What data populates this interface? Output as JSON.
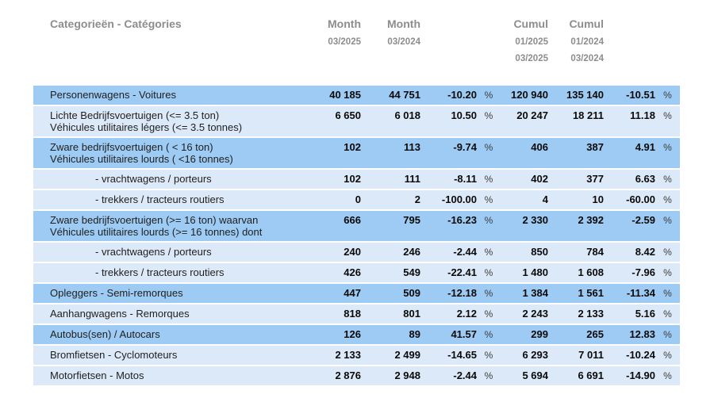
{
  "header": {
    "category_column_label": "Categorieën - Catégories",
    "month_current": {
      "label": "Month",
      "period": "03/2025"
    },
    "month_previous": {
      "label": "Month",
      "period": "03/2024"
    },
    "cumul_current": {
      "label": "Cumul",
      "period_from": "01/2025",
      "period_to": "03/2025"
    },
    "cumul_previous": {
      "label": "Cumul",
      "period_from": "01/2024",
      "period_to": "03/2024"
    }
  },
  "percent_symbol": "%",
  "colors": {
    "row_dark": "#9ecbf3",
    "row_light": "#dce9f8",
    "header_text": "#8d8d8d",
    "label_text": "#1f1f1f",
    "number_text": "#0a0a0a",
    "percent_text": "#3c3c3c"
  },
  "table": {
    "rows": [
      {
        "label_lines": [
          "Personenwagens - Voitures"
        ],
        "indent": false,
        "shade": "dark",
        "month_current": "40 185",
        "month_previous": "44 751",
        "month_pct": "-10.20",
        "cumul_current": "120 940",
        "cumul_previous": "135 140",
        "cumul_pct": "-10.51"
      },
      {
        "label_lines": [
          "Lichte Bedrijfsvoertuigen (<= 3.5 ton)",
          "Véhicules utilitaires légers (<= 3.5 tonnes)"
        ],
        "indent": false,
        "shade": "light",
        "month_current": "6 650",
        "month_previous": "6 018",
        "month_pct": "10.50",
        "cumul_current": "20 247",
        "cumul_previous": "18 211",
        "cumul_pct": "11.18"
      },
      {
        "label_lines": [
          "Zware bedrijfsvoertuigen ( < 16 ton)",
          "Véhicules utilitaires lourds ( <16 tonnes)"
        ],
        "indent": false,
        "shade": "dark",
        "month_current": "102",
        "month_previous": "113",
        "month_pct": "-9.74",
        "cumul_current": "406",
        "cumul_previous": "387",
        "cumul_pct": "4.91"
      },
      {
        "label_lines": [
          "- vrachtwagens / porteurs"
        ],
        "indent": true,
        "shade": "light",
        "month_current": "102",
        "month_previous": "111",
        "month_pct": "-8.11",
        "cumul_current": "402",
        "cumul_previous": "377",
        "cumul_pct": "6.63"
      },
      {
        "label_lines": [
          "- trekkers / tracteurs routiers"
        ],
        "indent": true,
        "shade": "light",
        "month_current": "0",
        "month_previous": "2",
        "month_pct": "-100.00",
        "cumul_current": "4",
        "cumul_previous": "10",
        "cumul_pct": "-60.00"
      },
      {
        "label_lines": [
          "Zware bedrijfsvoertuigen (>= 16 ton) waarvan",
          "Véhicules utilitaires lourds (>= 16 tonnes) dont"
        ],
        "indent": false,
        "shade": "dark",
        "month_current": "666",
        "month_previous": "795",
        "month_pct": "-16.23",
        "cumul_current": "2 330",
        "cumul_previous": "2 392",
        "cumul_pct": "-2.59"
      },
      {
        "label_lines": [
          "- vrachtwagens / porteurs"
        ],
        "indent": true,
        "shade": "light",
        "month_current": "240",
        "month_previous": "246",
        "month_pct": "-2.44",
        "cumul_current": "850",
        "cumul_previous": "784",
        "cumul_pct": "8.42"
      },
      {
        "label_lines": [
          "- trekkers / tracteurs routiers"
        ],
        "indent": true,
        "shade": "light",
        "month_current": "426",
        "month_previous": "549",
        "month_pct": "-22.41",
        "cumul_current": "1 480",
        "cumul_previous": "1 608",
        "cumul_pct": "-7.96"
      },
      {
        "label_lines": [
          "Opleggers - Semi-remorques"
        ],
        "indent": false,
        "shade": "dark",
        "month_current": "447",
        "month_previous": "509",
        "month_pct": "-12.18",
        "cumul_current": "1 384",
        "cumul_previous": "1 561",
        "cumul_pct": "-11.34"
      },
      {
        "label_lines": [
          "Aanhangwagens - Remorques"
        ],
        "indent": false,
        "shade": "light",
        "month_current": "818",
        "month_previous": "801",
        "month_pct": "2.12",
        "cumul_current": "2 243",
        "cumul_previous": "2 133",
        "cumul_pct": "5.16"
      },
      {
        "label_lines": [
          "Autobus(sen) / Autocars"
        ],
        "indent": false,
        "shade": "dark",
        "month_current": "126",
        "month_previous": "89",
        "month_pct": "41.57",
        "cumul_current": "299",
        "cumul_previous": "265",
        "cumul_pct": "12.83"
      },
      {
        "label_lines": [
          "Bromfietsen - Cyclomoteurs"
        ],
        "indent": false,
        "shade": "light",
        "month_current": "2 133",
        "month_previous": "2 499",
        "month_pct": "-14.65",
        "cumul_current": "6 293",
        "cumul_previous": "7 011",
        "cumul_pct": "-10.24"
      },
      {
        "label_lines": [
          "Motorfietsen - Motos"
        ],
        "indent": false,
        "shade": "light",
        "month_current": "2 876",
        "month_previous": "2 948",
        "month_pct": "-2.44",
        "cumul_current": "5 694",
        "cumul_previous": "6 691",
        "cumul_pct": "-14.90"
      }
    ]
  }
}
